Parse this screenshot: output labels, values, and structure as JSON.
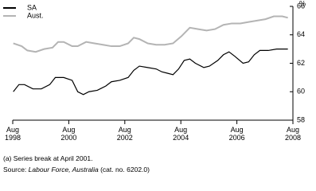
{
  "chart_data": {
    "type": "line",
    "y_label": "%",
    "xlim": [
      1998.58,
      2008.58
    ],
    "xticks": [
      {
        "value": 1998.58,
        "label": "Aug 1998"
      },
      {
        "value": 2000.58,
        "label": "Aug 2000"
      },
      {
        "value": 2002.58,
        "label": "Aug 2002"
      },
      {
        "value": 2004.58,
        "label": "Aug 2004"
      },
      {
        "value": 2006.58,
        "label": "Aug 2006"
      },
      {
        "value": 2008.58,
        "label": "Aug 2008"
      }
    ],
    "ylim": [
      58,
      66
    ],
    "yticks": [
      58,
      60,
      62,
      64,
      66
    ],
    "series": [
      {
        "name": "SA",
        "color": "#000000",
        "x": [
          1998.6,
          1998.8,
          1999.0,
          1999.3,
          1999.6,
          1999.9,
          2000.1,
          2000.4,
          2000.7,
          2000.9,
          2001.1,
          2001.3,
          2001.6,
          2001.9,
          2002.1,
          2002.4,
          2002.7,
          2002.9,
          2003.1,
          2003.4,
          2003.7,
          2003.9,
          2004.1,
          2004.3,
          2004.5,
          2004.7,
          2004.9,
          2005.1,
          2005.4,
          2005.6,
          2005.9,
          2006.1,
          2006.3,
          2006.5,
          2006.8,
          2007.0,
          2007.2,
          2007.4,
          2007.7,
          2008.0,
          2008.4
        ],
        "values": [
          60.0,
          60.5,
          60.5,
          60.2,
          60.2,
          60.5,
          61.0,
          61.0,
          60.8,
          60.0,
          59.8,
          60.0,
          60.1,
          60.4,
          60.7,
          60.8,
          61.0,
          61.5,
          61.8,
          61.7,
          61.6,
          61.4,
          61.3,
          61.2,
          61.6,
          62.2,
          62.3,
          62.0,
          61.7,
          61.8,
          62.2,
          62.6,
          62.8,
          62.5,
          62.0,
          62.1,
          62.6,
          62.9,
          62.9,
          63.0,
          63.0
        ]
      },
      {
        "name": "Aust.",
        "color": "#b4b4b4",
        "x": [
          1998.6,
          1998.9,
          1999.1,
          1999.4,
          1999.7,
          2000.0,
          2000.2,
          2000.4,
          2000.7,
          2000.9,
          2001.2,
          2001.5,
          2001.8,
          2002.1,
          2002.4,
          2002.7,
          2002.9,
          2003.1,
          2003.4,
          2003.7,
          2004.0,
          2004.3,
          2004.6,
          2004.9,
          2005.2,
          2005.5,
          2005.8,
          2006.1,
          2006.4,
          2006.7,
          2007.0,
          2007.3,
          2007.6,
          2007.9,
          2008.2,
          2008.4
        ],
        "values": [
          63.4,
          63.2,
          62.9,
          62.8,
          63.0,
          63.1,
          63.5,
          63.5,
          63.2,
          63.2,
          63.5,
          63.4,
          63.3,
          63.2,
          63.2,
          63.4,
          63.8,
          63.7,
          63.4,
          63.3,
          63.3,
          63.4,
          63.9,
          64.5,
          64.4,
          64.3,
          64.4,
          64.7,
          64.8,
          64.8,
          64.9,
          65.0,
          65.1,
          65.3,
          65.3,
          65.2
        ]
      }
    ],
    "footnote": "(a) Series break at April 2001.",
    "source": {
      "prefix": "Source: ",
      "title": "Labour Force, Australia",
      "suffix": " (cat. no. 6202.0)"
    }
  }
}
